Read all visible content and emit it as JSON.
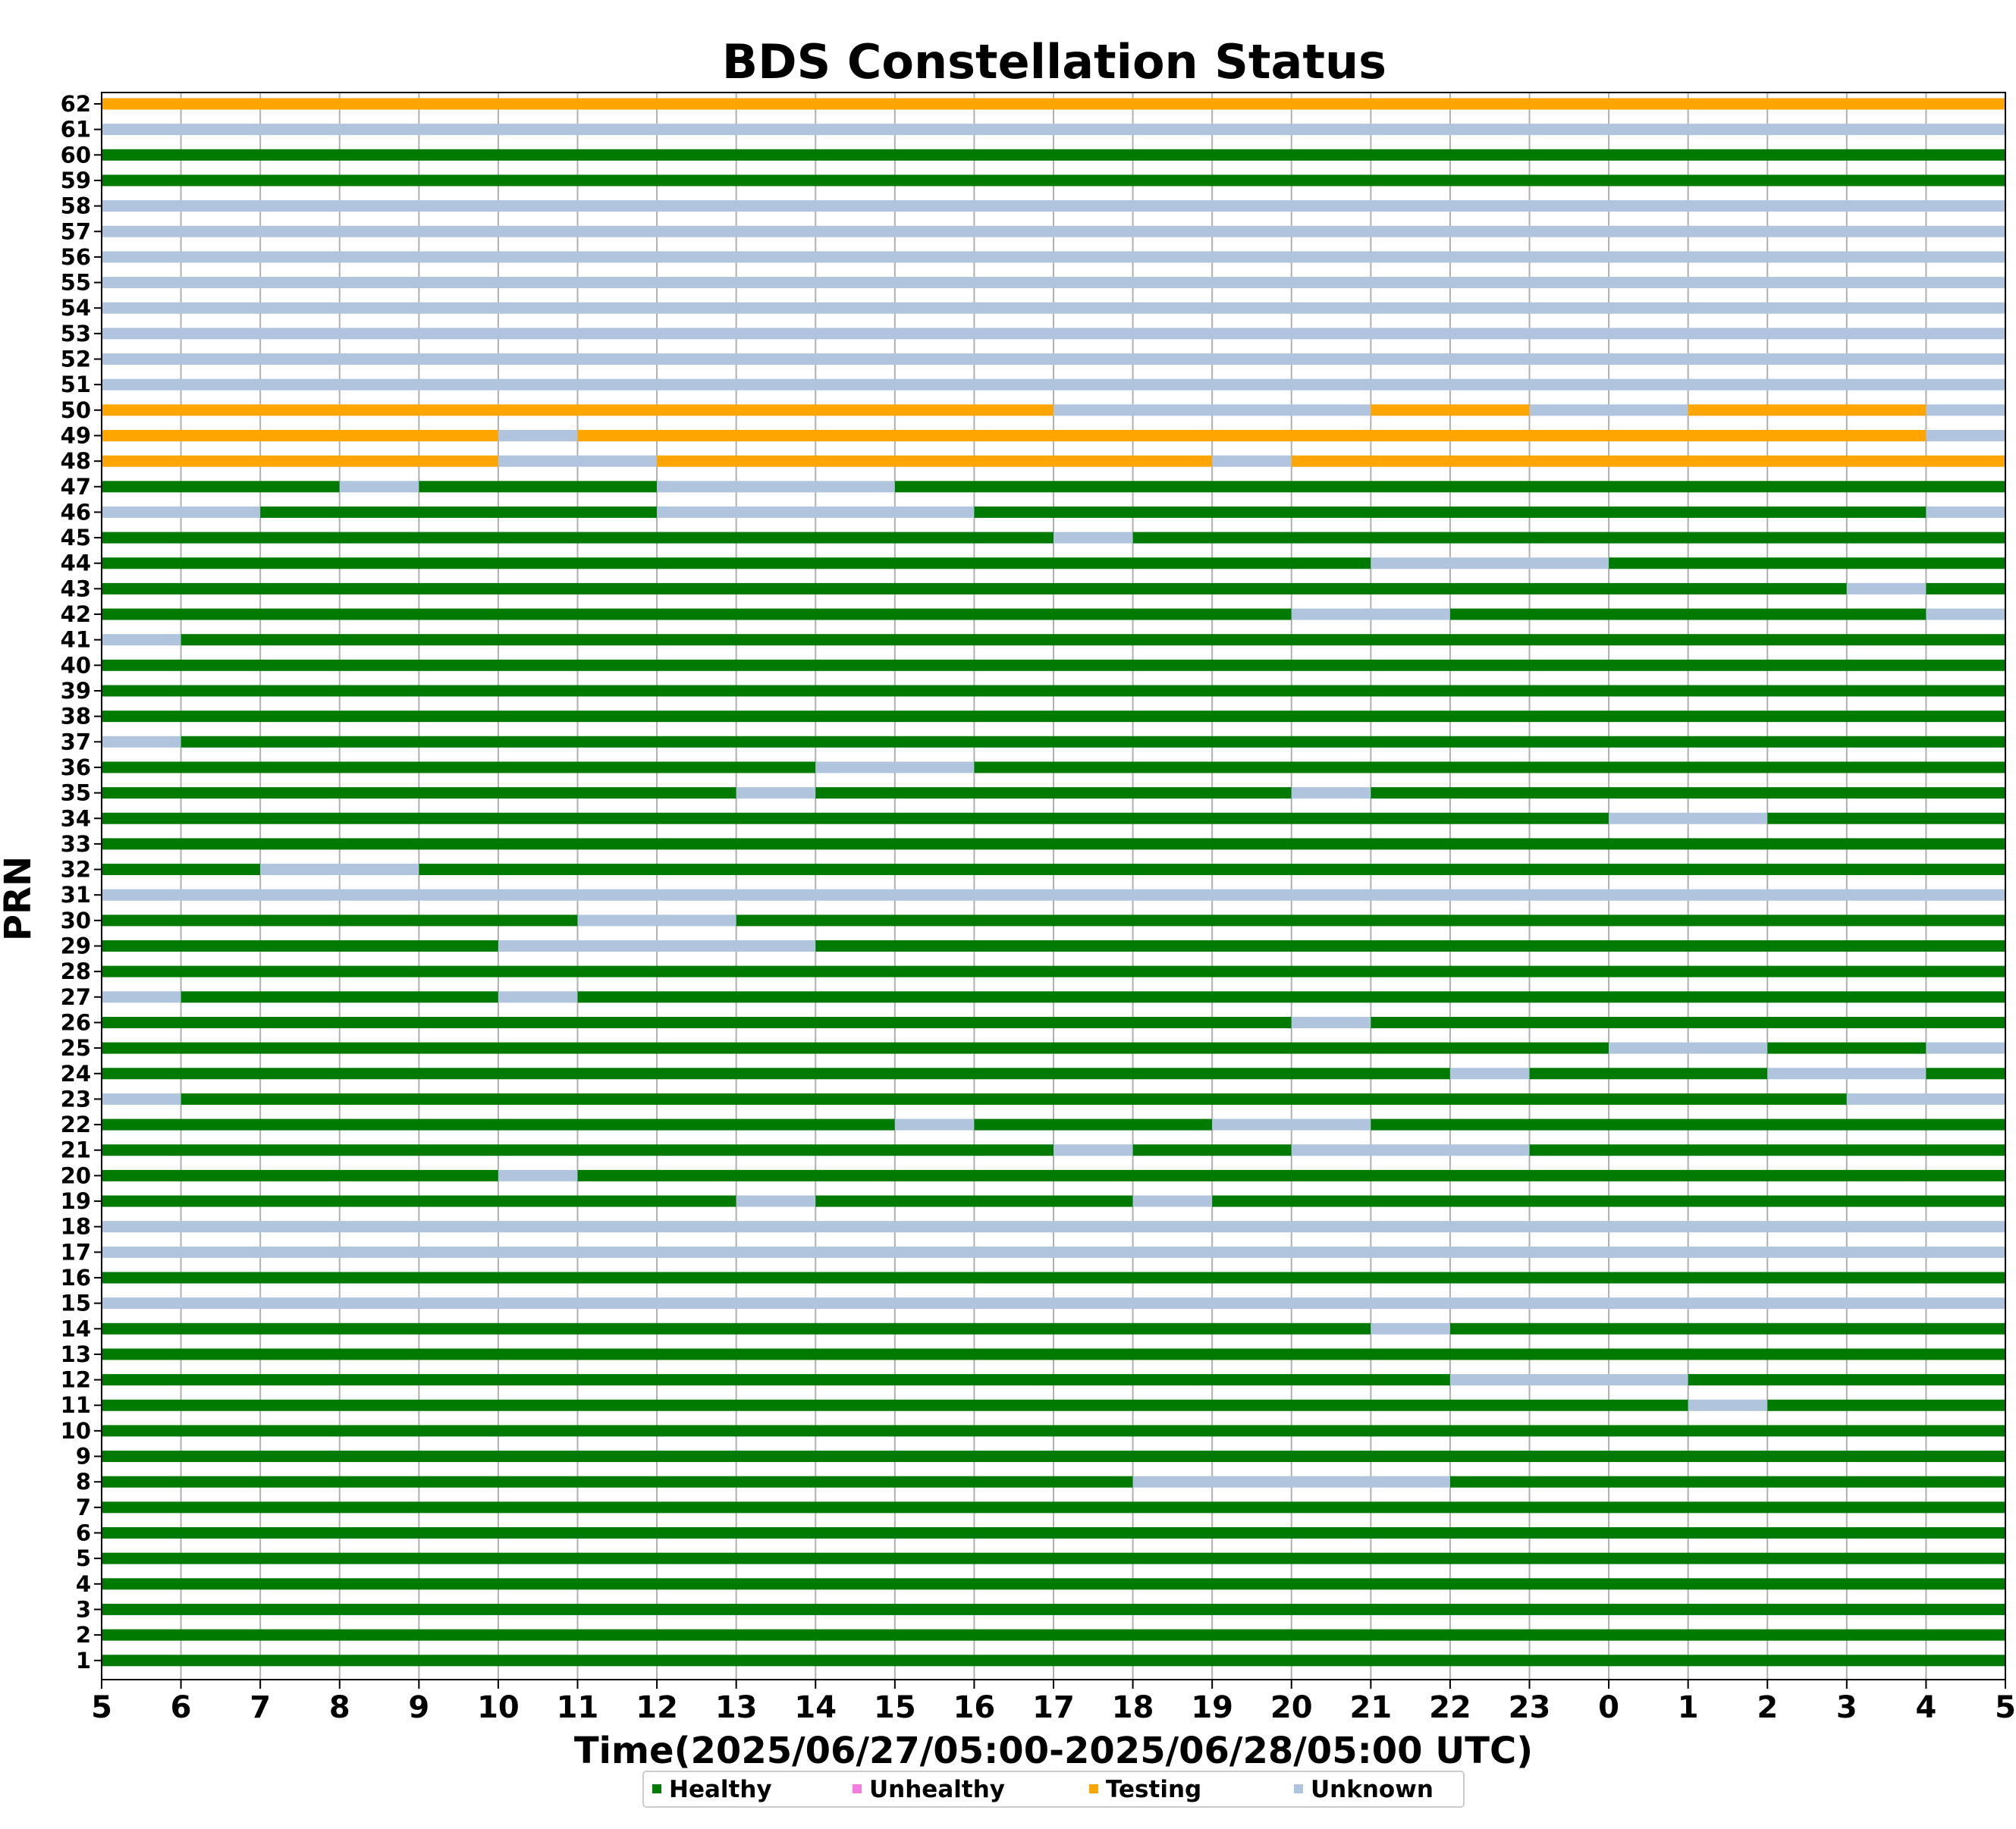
{
  "chart_data": {
    "type": "timeline",
    "title": "BDS Constellation Status",
    "xlabel": "Time(2025/06/27/05:00-2025/06/28/05:00 UTC)",
    "ylabel": "PRN",
    "x_range_hours": [
      0,
      24
    ],
    "x_tick_labels": [
      "5",
      "6",
      "7",
      "8",
      "9",
      "10",
      "11",
      "12",
      "13",
      "14",
      "15",
      "16",
      "17",
      "18",
      "19",
      "20",
      "21",
      "22",
      "23",
      "0",
      "1",
      "2",
      "3",
      "4",
      "5"
    ],
    "grid": "vertical",
    "legend_position": "bottom-center",
    "colors": {
      "Healthy": "#007a00",
      "Unhealthy": "#f57ce0",
      "Testing": "#ffa500",
      "Unknown": "#b0c4de"
    },
    "legend": [
      "Healthy",
      "Unhealthy",
      "Testing",
      "Unknown"
    ],
    "prns": [
      1,
      2,
      3,
      4,
      5,
      6,
      7,
      8,
      9,
      10,
      11,
      12,
      13,
      14,
      15,
      16,
      17,
      18,
      19,
      20,
      21,
      22,
      23,
      24,
      25,
      26,
      27,
      28,
      29,
      30,
      31,
      32,
      33,
      34,
      35,
      36,
      37,
      38,
      39,
      40,
      41,
      42,
      43,
      44,
      45,
      46,
      47,
      48,
      49,
      50,
      51,
      52,
      53,
      54,
      55,
      56,
      57,
      58,
      59,
      60,
      61,
      62
    ],
    "series": {
      "1": [
        [
          "Healthy",
          0,
          24
        ]
      ],
      "2": [
        [
          "Healthy",
          0,
          24
        ]
      ],
      "3": [
        [
          "Healthy",
          0,
          24
        ]
      ],
      "4": [
        [
          "Healthy",
          0,
          24
        ]
      ],
      "5": [
        [
          "Healthy",
          0,
          24
        ]
      ],
      "6": [
        [
          "Healthy",
          0,
          24
        ]
      ],
      "7": [
        [
          "Healthy",
          0,
          24
        ]
      ],
      "8": [
        [
          "Healthy",
          0,
          13
        ],
        [
          "Unknown",
          13,
          17
        ],
        [
          "Healthy",
          17,
          24
        ]
      ],
      "9": [
        [
          "Healthy",
          0,
          24
        ]
      ],
      "10": [
        [
          "Healthy",
          0,
          24
        ]
      ],
      "11": [
        [
          "Healthy",
          0,
          20
        ],
        [
          "Unknown",
          20,
          21
        ],
        [
          "Healthy",
          21,
          24
        ]
      ],
      "12": [
        [
          "Healthy",
          0,
          17
        ],
        [
          "Unknown",
          17,
          20
        ],
        [
          "Healthy",
          20,
          24
        ]
      ],
      "13": [
        [
          "Healthy",
          0,
          24
        ]
      ],
      "14": [
        [
          "Healthy",
          0,
          16
        ],
        [
          "Unknown",
          16,
          17
        ],
        [
          "Healthy",
          17,
          24
        ]
      ],
      "15": [
        [
          "Unknown",
          0,
          24
        ]
      ],
      "16": [
        [
          "Healthy",
          0,
          24
        ]
      ],
      "17": [
        [
          "Unknown",
          0,
          24
        ]
      ],
      "18": [
        [
          "Unknown",
          0,
          24
        ]
      ],
      "19": [
        [
          "Healthy",
          0,
          8
        ],
        [
          "Unknown",
          8,
          9
        ],
        [
          "Healthy",
          9,
          13
        ],
        [
          "Unknown",
          13,
          14
        ],
        [
          "Healthy",
          14,
          24
        ]
      ],
      "20": [
        [
          "Healthy",
          0,
          5
        ],
        [
          "Unknown",
          5,
          6
        ],
        [
          "Healthy",
          6,
          24
        ]
      ],
      "21": [
        [
          "Healthy",
          0,
          12
        ],
        [
          "Unknown",
          12,
          13
        ],
        [
          "Healthy",
          13,
          15
        ],
        [
          "Unknown",
          15,
          18
        ],
        [
          "Healthy",
          18,
          24
        ]
      ],
      "22": [
        [
          "Healthy",
          0,
          10
        ],
        [
          "Unknown",
          10,
          11
        ],
        [
          "Healthy",
          11,
          14
        ],
        [
          "Unknown",
          14,
          16
        ],
        [
          "Healthy",
          16,
          24
        ]
      ],
      "23": [
        [
          "Unknown",
          0,
          1
        ],
        [
          "Healthy",
          1,
          22
        ],
        [
          "Unknown",
          22,
          24
        ]
      ],
      "24": [
        [
          "Healthy",
          0,
          17
        ],
        [
          "Unknown",
          17,
          18
        ],
        [
          "Healthy",
          18,
          21
        ],
        [
          "Unknown",
          21,
          23
        ],
        [
          "Healthy",
          23,
          24
        ]
      ],
      "25": [
        [
          "Healthy",
          0,
          19
        ],
        [
          "Unknown",
          19,
          21
        ],
        [
          "Healthy",
          21,
          23
        ],
        [
          "Unknown",
          23,
          24
        ]
      ],
      "26": [
        [
          "Healthy",
          0,
          15
        ],
        [
          "Unknown",
          15,
          16
        ],
        [
          "Healthy",
          16,
          24
        ]
      ],
      "27": [
        [
          "Unknown",
          0,
          1
        ],
        [
          "Healthy",
          1,
          5
        ],
        [
          "Unknown",
          5,
          6
        ],
        [
          "Healthy",
          6,
          24
        ]
      ],
      "28": [
        [
          "Healthy",
          0,
          24
        ]
      ],
      "29": [
        [
          "Healthy",
          0,
          5
        ],
        [
          "Unknown",
          5,
          9
        ],
        [
          "Healthy",
          9,
          24
        ]
      ],
      "30": [
        [
          "Healthy",
          0,
          6
        ],
        [
          "Unknown",
          6,
          8
        ],
        [
          "Healthy",
          8,
          24
        ]
      ],
      "31": [
        [
          "Unknown",
          0,
          24
        ]
      ],
      "32": [
        [
          "Healthy",
          0,
          2
        ],
        [
          "Unknown",
          2,
          4
        ],
        [
          "Healthy",
          4,
          24
        ]
      ],
      "33": [
        [
          "Healthy",
          0,
          24
        ]
      ],
      "34": [
        [
          "Healthy",
          0,
          19
        ],
        [
          "Unknown",
          19,
          21
        ],
        [
          "Healthy",
          21,
          24
        ]
      ],
      "35": [
        [
          "Healthy",
          0,
          8
        ],
        [
          "Unknown",
          8,
          9
        ],
        [
          "Healthy",
          9,
          15
        ],
        [
          "Unknown",
          15,
          16
        ],
        [
          "Healthy",
          16,
          24
        ]
      ],
      "36": [
        [
          "Healthy",
          0,
          9
        ],
        [
          "Unknown",
          9,
          11
        ],
        [
          "Healthy",
          11,
          24
        ]
      ],
      "37": [
        [
          "Unknown",
          0,
          1
        ],
        [
          "Healthy",
          1,
          24
        ]
      ],
      "38": [
        [
          "Healthy",
          0,
          24
        ]
      ],
      "39": [
        [
          "Healthy",
          0,
          24
        ]
      ],
      "40": [
        [
          "Healthy",
          0,
          24
        ]
      ],
      "41": [
        [
          "Unknown",
          0,
          1
        ],
        [
          "Healthy",
          1,
          24
        ]
      ],
      "42": [
        [
          "Healthy",
          0,
          15
        ],
        [
          "Unknown",
          15,
          17
        ],
        [
          "Healthy",
          17,
          23
        ],
        [
          "Unknown",
          23,
          24
        ]
      ],
      "43": [
        [
          "Healthy",
          0,
          22
        ],
        [
          "Unknown",
          22,
          23
        ],
        [
          "Healthy",
          23,
          24
        ]
      ],
      "44": [
        [
          "Healthy",
          0,
          16
        ],
        [
          "Unknown",
          16,
          19
        ],
        [
          "Healthy",
          19,
          24
        ]
      ],
      "45": [
        [
          "Healthy",
          0,
          12
        ],
        [
          "Unknown",
          12,
          13
        ],
        [
          "Healthy",
          13,
          24
        ]
      ],
      "46": [
        [
          "Unknown",
          0,
          2
        ],
        [
          "Healthy",
          2,
          7
        ],
        [
          "Unknown",
          7,
          11
        ],
        [
          "Healthy",
          11,
          23
        ],
        [
          "Unknown",
          23,
          24
        ]
      ],
      "47": [
        [
          "Healthy",
          0,
          3
        ],
        [
          "Unknown",
          3,
          4
        ],
        [
          "Healthy",
          4,
          7
        ],
        [
          "Unknown",
          7,
          10
        ],
        [
          "Healthy",
          10,
          24
        ]
      ],
      "48": [
        [
          "Testing",
          0,
          5
        ],
        [
          "Unknown",
          5,
          7
        ],
        [
          "Testing",
          7,
          14
        ],
        [
          "Unknown",
          14,
          15
        ],
        [
          "Testing",
          15,
          24
        ]
      ],
      "49": [
        [
          "Testing",
          0,
          5
        ],
        [
          "Unknown",
          5,
          6
        ],
        [
          "Testing",
          6,
          23
        ],
        [
          "Unknown",
          23,
          24
        ]
      ],
      "50": [
        [
          "Testing",
          0,
          12
        ],
        [
          "Unknown",
          12,
          16
        ],
        [
          "Testing",
          16,
          18
        ],
        [
          "Unknown",
          18,
          20
        ],
        [
          "Testing",
          20,
          23
        ],
        [
          "Unknown",
          23,
          24
        ]
      ],
      "51": [
        [
          "Unknown",
          0,
          24
        ]
      ],
      "52": [
        [
          "Unknown",
          0,
          24
        ]
      ],
      "53": [
        [
          "Unknown",
          0,
          24
        ]
      ],
      "54": [
        [
          "Unknown",
          0,
          24
        ]
      ],
      "55": [
        [
          "Unknown",
          0,
          24
        ]
      ],
      "56": [
        [
          "Unknown",
          0,
          24
        ]
      ],
      "57": [
        [
          "Unknown",
          0,
          24
        ]
      ],
      "58": [
        [
          "Unknown",
          0,
          24
        ]
      ],
      "59": [
        [
          "Healthy",
          0,
          24
        ]
      ],
      "60": [
        [
          "Healthy",
          0,
          24
        ]
      ],
      "61": [
        [
          "Unknown",
          0,
          24
        ]
      ],
      "62": [
        [
          "Testing",
          0,
          24
        ]
      ]
    }
  }
}
